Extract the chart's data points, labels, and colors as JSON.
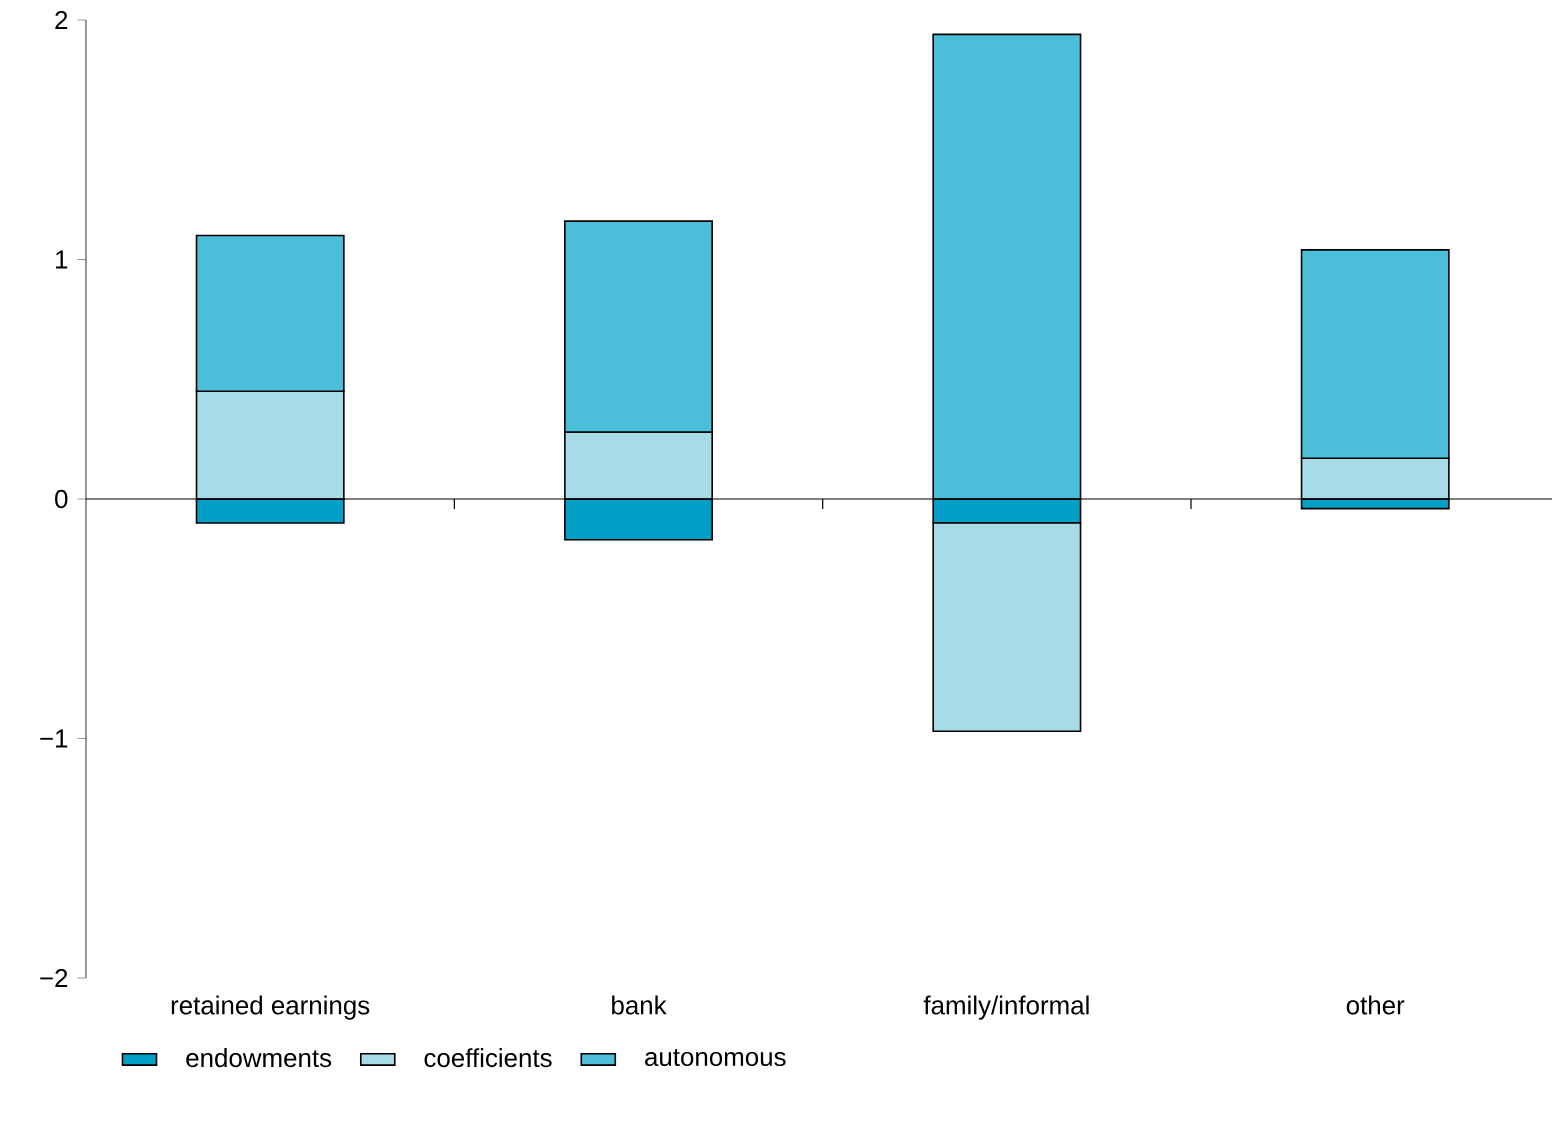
{
  "chart_data": {
    "type": "bar",
    "stacked": true,
    "categories": [
      "retained earnings",
      "bank",
      "family/informal",
      "other"
    ],
    "series": [
      {
        "name": "endowments",
        "color": "#00a0c6",
        "values": [
          -0.1,
          -0.17,
          -0.1,
          -0.04
        ]
      },
      {
        "name": "coefficients",
        "color": "#a8dbe8",
        "values": [
          0.45,
          0.28,
          -0.87,
          0.17
        ]
      },
      {
        "name": "autonomous",
        "color": "#4bbfd9",
        "values": [
          0.65,
          0.88,
          1.94,
          0.87
        ]
      }
    ],
    "ylim": [
      -2,
      2
    ],
    "yticks": [
      {
        "value": -2,
        "label": "−2"
      },
      {
        "value": -1,
        "label": "−1"
      },
      0,
      1,
      2
    ],
    "legend": "bottom"
  }
}
